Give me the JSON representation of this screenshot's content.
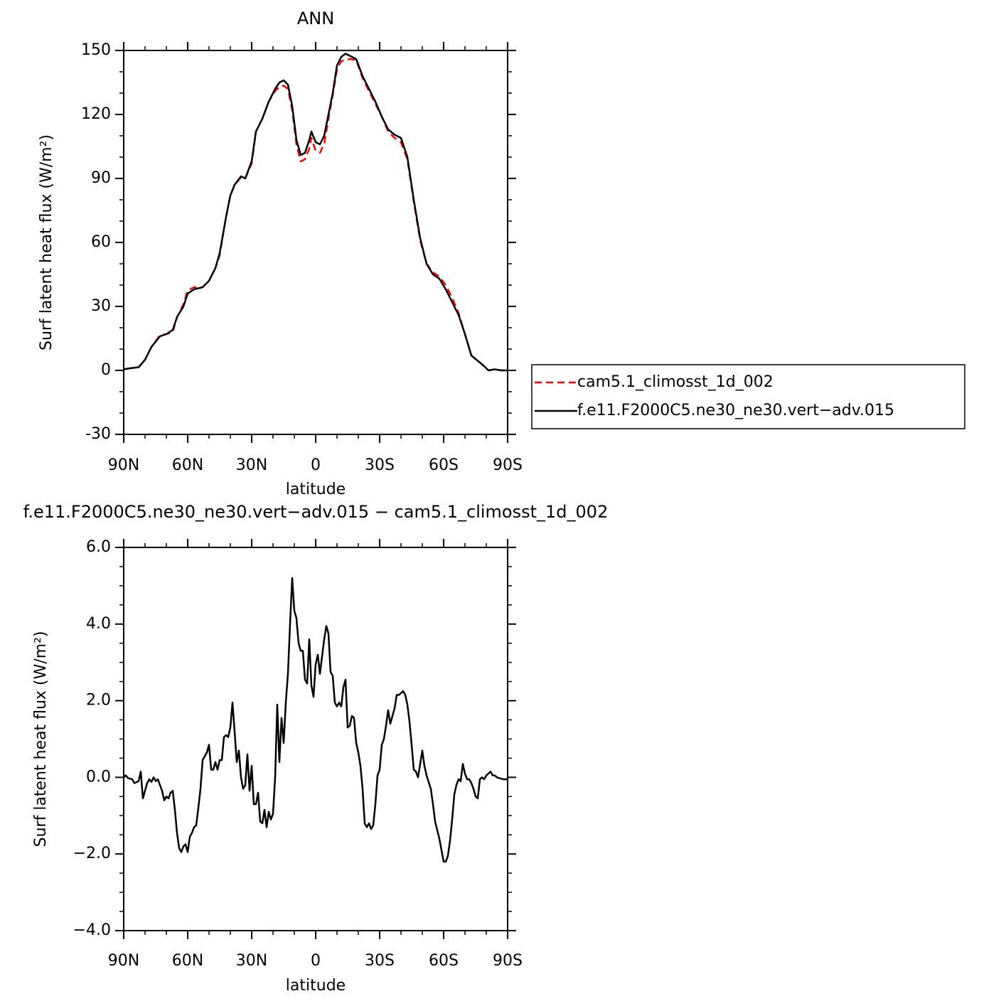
{
  "chart_data": [
    {
      "type": "line",
      "title": "ANN",
      "xlabel": "latitude",
      "ylabel": "Surf latent heat flux (W/m²)",
      "xlim": [
        90,
        -90
      ],
      "ylim": [
        -30,
        150
      ],
      "xticks": [
        {
          "value": 90,
          "label": "90N"
        },
        {
          "value": 60,
          "label": "60N"
        },
        {
          "value": 30,
          "label": "30N"
        },
        0,
        {
          "value": -30,
          "label": "30S"
        },
        {
          "value": -60,
          "label": "60S"
        },
        {
          "value": -90,
          "label": "90S"
        }
      ],
      "xminorticks": [
        80,
        70,
        50,
        40,
        20,
        10,
        -10,
        -20,
        -40,
        -50,
        -70,
        -80
      ],
      "yticks": [
        -30,
        0,
        30,
        60,
        90,
        120,
        150
      ],
      "yminorticks": [
        -20,
        -10,
        10,
        20,
        40,
        50,
        70,
        80,
        100,
        110,
        130,
        140
      ],
      "legend": "right",
      "x": [
        90,
        87,
        83,
        80,
        77,
        73,
        70,
        67,
        65,
        62,
        60,
        57,
        53,
        50,
        47,
        45,
        42,
        40,
        38,
        35,
        33,
        30,
        28,
        25,
        22,
        19,
        17,
        15,
        13,
        11,
        9,
        7,
        5,
        3,
        2,
        0,
        -2,
        -4,
        -6,
        -8,
        -10,
        -12,
        -14,
        -16,
        -19,
        -22,
        -25,
        -28,
        -31,
        -34,
        -37,
        -40,
        -43,
        -46,
        -49,
        -52,
        -55,
        -58,
        -61,
        -64,
        -67,
        -70,
        -73,
        -76,
        -79,
        -81,
        -84,
        -87,
        -90
      ],
      "series": [
        {
          "name": "cam5.1_climosst_1d_002",
          "color": "#ff0000",
          "linestyle": "dashed",
          "values": [
            0.5,
            1,
            1.5,
            5,
            11,
            16.5,
            17,
            18,
            25,
            31,
            37.5,
            39,
            39,
            42,
            48,
            54,
            72,
            82,
            87,
            90.5,
            90,
            97,
            112,
            118,
            126,
            131,
            133,
            133.5,
            132,
            122,
            106,
            98,
            99,
            104,
            109,
            103,
            102,
            106,
            118,
            129,
            141,
            145,
            145.5,
            146,
            145.5,
            137,
            131,
            125,
            119,
            112,
            109,
            107,
            99,
            79,
            61,
            50,
            46,
            44,
            40,
            34,
            27,
            17,
            7,
            4.5,
            2,
            0,
            0.5,
            0,
            0
          ]
        },
        {
          "name": "f.e11.F2000C5.ne30_ne30.vert−adv.015",
          "color": "#000000",
          "linestyle": "solid",
          "values": [
            0.5,
            1,
            1.5,
            5,
            11,
            16,
            17,
            19,
            25,
            30,
            36,
            38,
            39,
            42,
            48,
            55,
            72,
            82,
            87,
            91,
            90,
            98,
            112,
            118,
            126,
            132,
            135,
            136,
            134,
            124,
            108,
            101,
            102,
            108,
            112,
            107,
            106,
            110,
            120,
            130,
            143,
            147,
            148.5,
            147.5,
            146,
            138,
            132,
            126,
            119,
            113,
            110.5,
            109,
            100,
            80,
            62,
            50,
            45,
            43,
            38,
            32,
            26,
            17,
            7,
            4.5,
            2,
            0,
            0.5,
            0,
            0
          ]
        }
      ]
    },
    {
      "type": "line",
      "title": "f.e11.F2000C5.ne30_ne30.vert−adv.015 − cam5.1_climosst_1d_002",
      "xlabel": "latitude",
      "ylabel": "Surf latent heat flux (W/m²)",
      "xlim": [
        90,
        -90
      ],
      "ylim": [
        -4,
        6
      ],
      "xticks": [
        {
          "value": 90,
          "label": "90N"
        },
        {
          "value": 60,
          "label": "60N"
        },
        {
          "value": 30,
          "label": "30N"
        },
        0,
        {
          "value": -30,
          "label": "30S"
        },
        {
          "value": -60,
          "label": "60S"
        },
        {
          "value": -90,
          "label": "90S"
        }
      ],
      "xminorticks": [
        80,
        70,
        50,
        40,
        20,
        10,
        -10,
        -20,
        -40,
        -50,
        -70,
        -80
      ],
      "yticks": [
        {
          "value": -4,
          "label": "−4.0"
        },
        {
          "value": -2,
          "label": "−2.0"
        },
        {
          "value": 0,
          "label": "0.0"
        },
        {
          "value": 2,
          "label": "2.0"
        },
        {
          "value": 4,
          "label": "4.0"
        },
        {
          "value": 6,
          "label": "6.0"
        }
      ],
      "yminorticks": [
        -3.5,
        -3,
        -2.5,
        -1.5,
        -1,
        -0.5,
        0.5,
        1,
        1.5,
        2.5,
        3,
        3.5,
        4.5,
        5,
        5.5
      ],
      "x": [
        90,
        89,
        88,
        86,
        85,
        83,
        82,
        81,
        79,
        78,
        77,
        76,
        75,
        74,
        73,
        72,
        71,
        70,
        69,
        68,
        67,
        66,
        65,
        64,
        63,
        62,
        61,
        60,
        59,
        58,
        57,
        56,
        55,
        54,
        53,
        52,
        51,
        50,
        49,
        48,
        47,
        46,
        45,
        44,
        43,
        42,
        41,
        40,
        39,
        38,
        37,
        36,
        35,
        34,
        33,
        32,
        31,
        30,
        29,
        28,
        27,
        26,
        25,
        24,
        23,
        22,
        21,
        20,
        19,
        18,
        17,
        16,
        15,
        14,
        13,
        12,
        11,
        10,
        9,
        8,
        7,
        6,
        5,
        4,
        3,
        2,
        1,
        0,
        -1,
        -2,
        -3,
        -4,
        -5,
        -6,
        -7,
        -8,
        -9,
        -10,
        -11,
        -12,
        -13,
        -14,
        -15,
        -16,
        -17,
        -18,
        -19,
        -20,
        -21,
        -22,
        -23,
        -24,
        -25,
        -26,
        -27,
        -28,
        -29,
        -30,
        -31,
        -32,
        -33,
        -34,
        -35,
        -36,
        -37,
        -38,
        -39,
        -40,
        -41,
        -42,
        -43,
        -44,
        -45,
        -46,
        -47,
        -48,
        -50,
        -51,
        -52,
        -54,
        -55,
        -56,
        -58,
        -59,
        -60,
        -61,
        -62,
        -63,
        -64,
        -65,
        -66,
        -67,
        -68,
        -69,
        -70,
        -71,
        -72,
        -73,
        -74,
        -75,
        -76,
        -77,
        -78,
        -79,
        -80,
        -81,
        -82,
        -83,
        -84,
        -85,
        -86,
        -88,
        -90
      ],
      "series": [
        {
          "color": "#000000",
          "linestyle": "solid",
          "values": [
            0.0,
            0.05,
            -0.02,
            -0.05,
            -0.15,
            -0.1,
            0.15,
            -0.55,
            -0.15,
            -0.05,
            -0.12,
            0.0,
            -0.1,
            -0.05,
            -0.2,
            -0.35,
            -0.6,
            -0.5,
            -0.55,
            -0.4,
            -0.35,
            -0.85,
            -1.45,
            -1.85,
            -1.95,
            -1.8,
            -1.75,
            -1.95,
            -1.55,
            -1.45,
            -1.3,
            -1.25,
            -0.8,
            -0.3,
            0.45,
            0.55,
            0.65,
            0.85,
            0.2,
            0.2,
            0.4,
            0.2,
            0.45,
            0.45,
            1.05,
            1.1,
            1.05,
            1.3,
            1.95,
            1.2,
            0.4,
            0.7,
            0.0,
            -0.3,
            -0.2,
            0.6,
            -0.35,
            0.3,
            -0.7,
            -0.7,
            -0.4,
            -1.15,
            -1.2,
            -0.85,
            -1.3,
            -0.9,
            -1.1,
            -0.95,
            0.0,
            1.9,
            0.4,
            1.55,
            0.9,
            1.95,
            2.7,
            4.0,
            5.2,
            4.35,
            4.15,
            3.5,
            3.3,
            3.3,
            2.55,
            2.45,
            3.6,
            2.4,
            2.1,
            2.95,
            3.2,
            2.7,
            3.15,
            3.6,
            3.95,
            3.75,
            2.75,
            2.65,
            1.95,
            1.85,
            1.95,
            1.85,
            2.35,
            2.55,
            1.3,
            1.35,
            1.6,
            1.55,
            0.9,
            0.65,
            0.3,
            -0.3,
            -1.2,
            -1.3,
            -1.2,
            -1.35,
            -1.25,
            -0.7,
            0.05,
            0.2,
            0.85,
            1.0,
            1.35,
            1.75,
            1.4,
            1.6,
            1.8,
            2.15,
            2.15,
            2.2,
            2.25,
            2.15,
            1.9,
            1.45,
            0.85,
            0.2,
            0.15,
            0.0,
            0.7,
            0.3,
            0.05,
            -0.3,
            -0.7,
            -1.15,
            -1.6,
            -1.9,
            -2.2,
            -2.2,
            -2.05,
            -1.65,
            -1.1,
            -0.45,
            -0.2,
            -0.05,
            -0.1,
            0.35,
            0.1,
            -0.05,
            -0.05,
            -0.15,
            -0.3,
            -0.5,
            -0.55,
            -0.05,
            0.0,
            -0.05,
            0.05,
            0.1,
            0.15,
            0.05,
            0.05,
            0.0,
            -0.02,
            -0.05,
            -0.05
          ]
        }
      ]
    }
  ]
}
